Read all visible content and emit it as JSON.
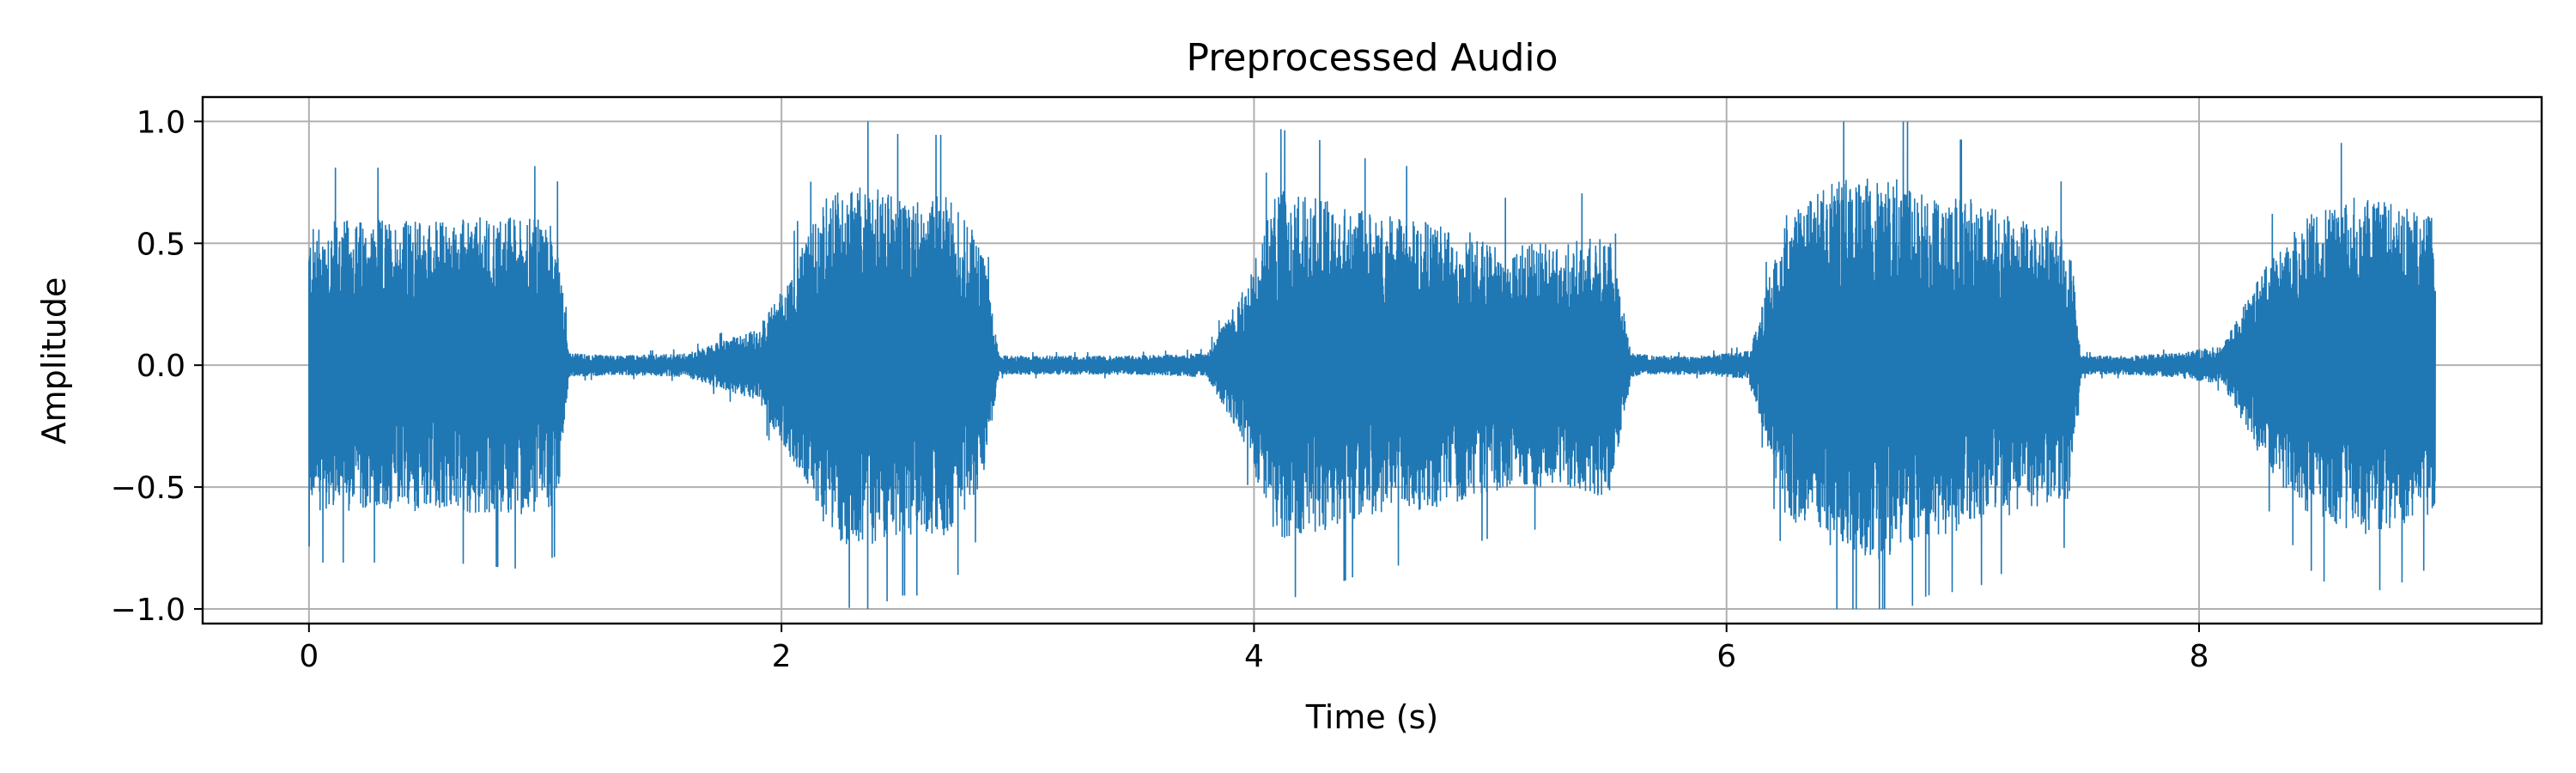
{
  "chart_data": {
    "type": "line",
    "title": "Preprocessed Audio",
    "xlabel": "Time (s)",
    "ylabel": "Amplitude",
    "xlim": [
      -0.45,
      9.45
    ],
    "ylim": [
      -1.06,
      1.1
    ],
    "x_ticks": [
      0,
      2,
      4,
      6,
      8
    ],
    "x_tick_labels": [
      "0",
      "2",
      "4",
      "6",
      "8"
    ],
    "y_ticks": [
      -1.0,
      -0.5,
      0.0,
      0.5,
      1.0
    ],
    "y_tick_labels": [
      "−1.0",
      "−0.5",
      "0.0",
      "0.5",
      "1.0"
    ],
    "grid": true,
    "series": [
      {
        "color": "#1f77b4",
        "envelope": {
          "t": [
            0.0,
            0.05,
            0.3,
            0.6,
            0.9,
            1.05,
            1.1,
            1.3,
            1.6,
            1.9,
            2.05,
            2.2,
            2.35,
            2.5,
            2.7,
            2.85,
            2.92,
            3.2,
            3.5,
            3.8,
            3.95,
            4.1,
            4.3,
            4.5,
            4.7,
            4.9,
            5.1,
            5.3,
            5.5,
            5.6,
            5.7,
            5.9,
            6.1,
            6.25,
            6.45,
            6.65,
            6.85,
            7.05,
            7.25,
            7.45,
            7.5,
            7.7,
            7.9,
            8.1,
            8.3,
            8.5,
            8.7,
            8.9,
            9.0
          ],
          "amp": [
            0.55,
            0.6,
            0.6,
            0.6,
            0.62,
            0.58,
            0.05,
            0.04,
            0.05,
            0.15,
            0.4,
            0.72,
            0.75,
            0.7,
            0.7,
            0.5,
            0.04,
            0.04,
            0.04,
            0.05,
            0.3,
            0.72,
            0.68,
            0.62,
            0.6,
            0.55,
            0.5,
            0.5,
            0.55,
            0.05,
            0.04,
            0.04,
            0.06,
            0.62,
            0.75,
            0.8,
            0.7,
            0.68,
            0.6,
            0.55,
            0.04,
            0.04,
            0.05,
            0.08,
            0.45,
            0.65,
            0.7,
            0.65,
            0.6
          ]
        }
      }
    ]
  }
}
